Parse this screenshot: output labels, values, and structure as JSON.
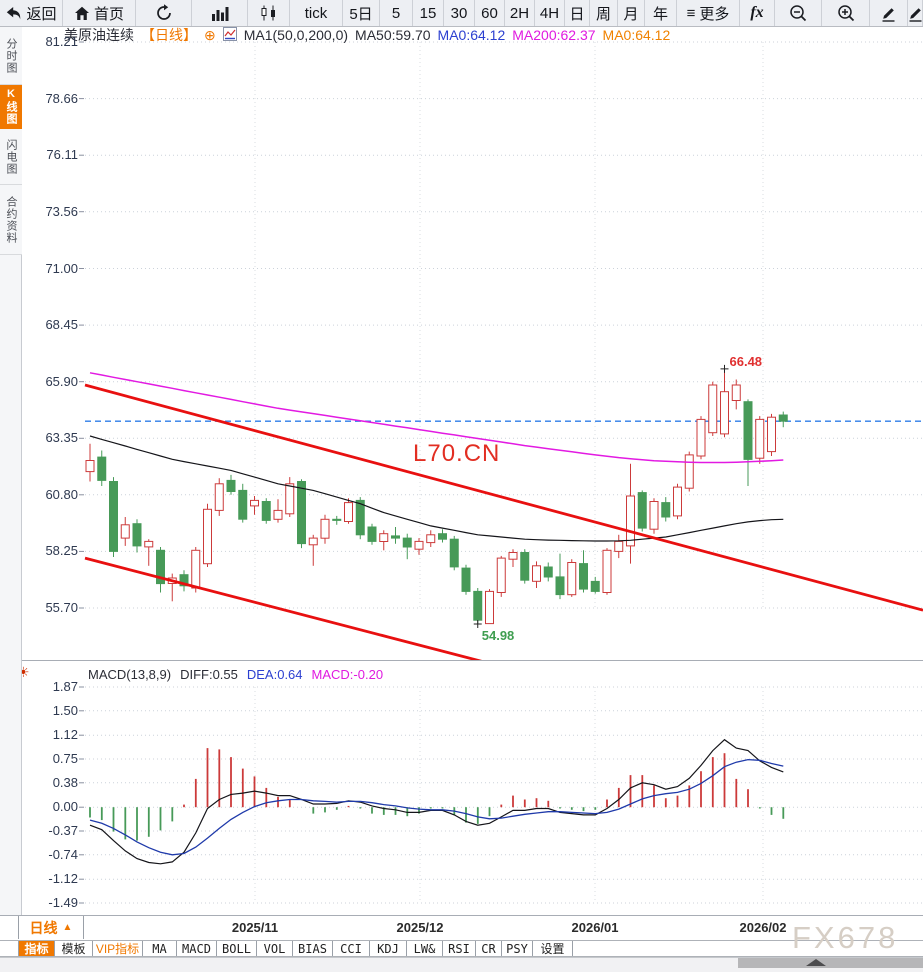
{
  "toolbar": {
    "items": [
      {
        "name": "back-button",
        "icon": "back-arrow-icon",
        "label": "返回"
      },
      {
        "name": "home-button",
        "icon": "home-icon",
        "label": "首页"
      },
      {
        "name": "refresh-button",
        "icon": "refresh-icon"
      },
      {
        "name": "chart-style-bar-button",
        "icon": "bar-chart-icon"
      },
      {
        "name": "chart-style-candle-button",
        "icon": "candlestick-icon"
      },
      {
        "name": "interval-tick-button",
        "label": "tick"
      },
      {
        "name": "interval-5day-button",
        "label": "5日"
      },
      {
        "name": "interval-5min-button",
        "label": "5"
      },
      {
        "name": "interval-15min-button",
        "label": "15"
      },
      {
        "name": "interval-30min-button",
        "label": "30"
      },
      {
        "name": "interval-60min-button",
        "label": "60"
      },
      {
        "name": "interval-2h-button",
        "label": "2H"
      },
      {
        "name": "interval-4h-button",
        "label": "4H"
      },
      {
        "name": "interval-day-button",
        "label": "日"
      },
      {
        "name": "interval-week-button",
        "label": "周"
      },
      {
        "name": "interval-month-button",
        "label": "月"
      },
      {
        "name": "interval-year-button",
        "label": "年"
      },
      {
        "name": "more-button",
        "icon": "menu-icon",
        "label": "更多"
      },
      {
        "name": "fx-indicator-button",
        "label": "fx",
        "fx": true
      },
      {
        "name": "zoom-out-button",
        "icon": "zoom-out-icon"
      },
      {
        "name": "zoom-in-button",
        "icon": "zoom-in-icon"
      },
      {
        "name": "draw-button",
        "icon": "pencil-icon"
      },
      {
        "name": "draw-partial-button",
        "icon": "pencil-icon"
      }
    ]
  },
  "sidebar": {
    "items": [
      {
        "label": "分时图",
        "active": false,
        "name": "sidebar-item-time-chart"
      },
      {
        "label": "K线图",
        "active": true,
        "name": "sidebar-item-kline-chart"
      },
      {
        "label": "闪电图",
        "active": false,
        "name": "sidebar-item-lightning-chart"
      },
      {
        "label": "合约资料",
        "active": false,
        "name": "sidebar-item-contract-info"
      }
    ]
  },
  "header": {
    "symbol": "美原油连续",
    "period_tag": "【日线】",
    "plus_icon": "⊕",
    "ma_settings": "MA1(50,0,200,0)",
    "ma50": "MA50:59.70",
    "ma0_blue": "MA0:64.12",
    "ma200": "MA200:62.37",
    "ma0_orange": "MA0:64.12"
  },
  "macd_header": {
    "title": "MACD(13,8,9)",
    "diff": "DIFF:0.55",
    "dea": "DEA:0.64",
    "macd": "MACD:-0.20",
    "settings_icon": "☀"
  },
  "bottom": {
    "period_label": "日线",
    "period_arrow": "▲"
  },
  "indicator_tabs": {
    "items": [
      {
        "label": "指标",
        "active": true,
        "name": "tab-indicator"
      },
      {
        "label": "模板",
        "name": "tab-template"
      },
      {
        "label": "VIP指标",
        "vip": true,
        "name": "tab-vip-indicator"
      },
      {
        "label": "MA",
        "latin": true,
        "name": "tab-ma"
      },
      {
        "label": "MACD",
        "latin": true,
        "name": "tab-macd"
      },
      {
        "label": "BOLL",
        "latin": true,
        "name": "tab-boll"
      },
      {
        "label": "VOL",
        "latin": true,
        "name": "tab-vol"
      },
      {
        "label": "BIAS",
        "latin": true,
        "name": "tab-bias"
      },
      {
        "label": "CCI",
        "latin": true,
        "name": "tab-cci"
      },
      {
        "label": "KDJ",
        "latin": true,
        "name": "tab-kdj"
      },
      {
        "label": "LW&",
        "latin": true,
        "name": "tab-lwr"
      },
      {
        "label": "RSI",
        "latin": true,
        "name": "tab-rsi"
      },
      {
        "label": "CR",
        "latin": true,
        "name": "tab-cr"
      },
      {
        "label": "PSY",
        "latin": true,
        "name": "tab-psy"
      },
      {
        "label": "设置",
        "name": "tab-settings"
      }
    ]
  },
  "watermarks": {
    "chart": "L70.CN",
    "brand": "FX678"
  },
  "colors": {
    "accent": "#f07800",
    "up": "#cc3a3a",
    "down": "#479a58",
    "ma50": "#15151a",
    "ma200": "#e21ae2",
    "current_line": "#2d7ce8",
    "trend": "#e81010",
    "diff": "#15151a",
    "dea": "#1f3aaa",
    "grid": "#ccd2da",
    "grid_v": "#d8dce2",
    "tick": "#8a90a0"
  },
  "chart_data": {
    "type": "candlestick",
    "title": "美原油连续 日线 (WTI crude continuous, daily)",
    "indicator": "MACD(13,8,9)",
    "y_ticks": [
      81.21,
      78.66,
      76.11,
      73.56,
      71.0,
      68.45,
      65.9,
      63.35,
      60.8,
      58.25,
      55.7
    ],
    "x_labels": [
      {
        "label": "2025/11",
        "x": 255
      },
      {
        "label": "2025/12",
        "x": 420
      },
      {
        "label": "2026/01",
        "x": 595
      },
      {
        "label": "2026/02",
        "x": 763
      }
    ],
    "current_price": 64.12,
    "annotations": {
      "high": {
        "index": 54,
        "price": 66.48,
        "label": "66.48"
      },
      "low": {
        "index": 33,
        "price": 54.98,
        "label": "54.98"
      }
    },
    "trendlines": [
      {
        "x1": 85,
        "price1": 65.75,
        "x2": 923,
        "price2": 55.6
      },
      {
        "x1": 85,
        "price1": 57.95,
        "x2": 490,
        "price2": 53.2
      }
    ],
    "candles": [
      [
        61.85,
        63.1,
        61.4,
        62.35
      ],
      [
        62.5,
        62.8,
        61.2,
        61.45
      ],
      [
        61.4,
        61.6,
        58.0,
        58.25
      ],
      [
        58.85,
        59.8,
        58.5,
        59.45
      ],
      [
        59.5,
        59.7,
        58.2,
        58.5
      ],
      [
        58.45,
        58.8,
        57.6,
        58.7
      ],
      [
        58.3,
        58.45,
        56.4,
        56.8
      ],
      [
        56.8,
        57.25,
        56.0,
        57.05
      ],
      [
        57.2,
        57.4,
        56.45,
        56.7
      ],
      [
        56.6,
        58.45,
        56.4,
        58.3
      ],
      [
        57.7,
        60.4,
        57.55,
        60.15
      ],
      [
        60.1,
        61.55,
        59.85,
        61.3
      ],
      [
        61.45,
        61.7,
        60.8,
        60.95
      ],
      [
        61.0,
        61.3,
        59.55,
        59.7
      ],
      [
        60.3,
        60.75,
        59.9,
        60.55
      ],
      [
        60.5,
        60.65,
        59.5,
        59.65
      ],
      [
        59.7,
        60.6,
        59.55,
        60.1
      ],
      [
        59.95,
        61.6,
        59.8,
        61.3
      ],
      [
        61.4,
        61.5,
        58.4,
        58.6
      ],
      [
        58.55,
        59.0,
        57.6,
        58.85
      ],
      [
        58.85,
        59.9,
        58.6,
        59.7
      ],
      [
        59.7,
        59.85,
        59.45,
        59.65
      ],
      [
        59.6,
        60.65,
        59.5,
        60.45
      ],
      [
        60.55,
        60.7,
        58.8,
        59.0
      ],
      [
        59.35,
        59.5,
        58.55,
        58.7
      ],
      [
        58.7,
        59.2,
        58.3,
        59.05
      ],
      [
        58.95,
        59.35,
        58.6,
        58.85
      ],
      [
        58.85,
        59.05,
        57.9,
        58.45
      ],
      [
        58.35,
        58.85,
        58.1,
        58.7
      ],
      [
        58.65,
        59.2,
        58.45,
        59.0
      ],
      [
        59.05,
        59.25,
        58.65,
        58.8
      ],
      [
        58.8,
        58.95,
        57.4,
        57.55
      ],
      [
        57.5,
        57.65,
        56.3,
        56.45
      ],
      [
        56.45,
        56.6,
        54.98,
        55.15
      ],
      [
        55.0,
        56.55,
        54.99,
        56.45
      ],
      [
        56.4,
        58.05,
        56.2,
        57.95
      ],
      [
        57.9,
        58.35,
        57.55,
        58.2
      ],
      [
        58.2,
        58.35,
        56.8,
        56.95
      ],
      [
        56.9,
        57.8,
        56.6,
        57.6
      ],
      [
        57.55,
        57.75,
        56.9,
        57.1
      ],
      [
        57.1,
        58.15,
        56.1,
        56.3
      ],
      [
        56.3,
        57.9,
        56.2,
        57.75
      ],
      [
        57.7,
        58.3,
        56.4,
        56.55
      ],
      [
        56.9,
        57.1,
        56.35,
        56.45
      ],
      [
        56.4,
        58.4,
        56.3,
        58.3
      ],
      [
        58.25,
        59.0,
        57.95,
        58.7
      ],
      [
        58.5,
        62.2,
        57.7,
        60.75
      ],
      [
        60.9,
        61.0,
        59.15,
        59.3
      ],
      [
        59.25,
        60.65,
        59.05,
        60.5
      ],
      [
        60.45,
        60.7,
        59.6,
        59.8
      ],
      [
        59.85,
        61.3,
        59.7,
        61.15
      ],
      [
        61.1,
        62.75,
        60.95,
        62.6
      ],
      [
        62.55,
        64.35,
        62.4,
        64.2
      ],
      [
        63.6,
        65.9,
        63.45,
        65.75
      ],
      [
        63.55,
        66.48,
        63.4,
        65.45
      ],
      [
        65.05,
        66.0,
        64.65,
        65.75
      ],
      [
        65.0,
        65.1,
        61.2,
        62.4
      ],
      [
        62.45,
        64.35,
        62.2,
        64.2
      ],
      [
        62.75,
        64.45,
        62.55,
        64.3
      ],
      [
        64.4,
        64.55,
        63.85,
        64.12
      ]
    ],
    "ma50": [
      63.45,
      63.3,
      63.15,
      63.0,
      62.85,
      62.7,
      62.55,
      62.4,
      62.3,
      62.2,
      62.1,
      62.0,
      61.9,
      61.75,
      61.6,
      61.45,
      61.3,
      61.2,
      61.1,
      61.0,
      60.85,
      60.7,
      60.55,
      60.4,
      60.2,
      60.0,
      59.85,
      59.7,
      59.55,
      59.4,
      59.3,
      59.2,
      59.1,
      59.0,
      58.95,
      58.9,
      58.85,
      58.8,
      58.78,
      58.76,
      58.75,
      58.74,
      58.73,
      58.72,
      58.72,
      58.73,
      58.75,
      58.8,
      58.85,
      58.9,
      59.0,
      59.1,
      59.2,
      59.3,
      59.4,
      59.5,
      59.58,
      59.64,
      59.68,
      59.7
    ],
    "ma200": [
      66.3,
      66.2,
      66.1,
      66.0,
      65.9,
      65.8,
      65.7,
      65.6,
      65.5,
      65.4,
      65.3,
      65.2,
      65.1,
      65.0,
      64.9,
      64.8,
      64.7,
      64.62,
      64.54,
      64.46,
      64.38,
      64.3,
      64.22,
      64.14,
      64.06,
      63.98,
      63.9,
      63.82,
      63.74,
      63.66,
      63.58,
      63.5,
      63.42,
      63.34,
      63.26,
      63.18,
      63.1,
      63.02,
      62.95,
      62.88,
      62.81,
      62.74,
      62.67,
      62.6,
      62.54,
      62.48,
      62.43,
      62.38,
      62.34,
      62.31,
      62.29,
      62.27,
      62.26,
      62.26,
      62.26,
      62.27,
      62.29,
      62.31,
      62.34,
      62.37
    ],
    "macd": {
      "y_ticks": [
        1.87,
        1.5,
        1.12,
        0.75,
        0.38,
        0.0,
        -0.37,
        -0.74,
        -1.12,
        -1.49
      ],
      "diff": [
        -0.28,
        -0.35,
        -0.52,
        -0.68,
        -0.8,
        -0.86,
        -0.88,
        -0.85,
        -0.7,
        -0.4,
        -0.02,
        0.12,
        0.2,
        0.22,
        0.25,
        0.22,
        0.18,
        0.18,
        0.12,
        0.05,
        0.05,
        0.06,
        0.1,
        0.08,
        0.02,
        -0.02,
        -0.04,
        -0.08,
        -0.08,
        -0.05,
        -0.05,
        -0.12,
        -0.22,
        -0.28,
        -0.25,
        -0.15,
        -0.05,
        -0.05,
        -0.02,
        -0.02,
        -0.08,
        -0.1,
        -0.12,
        -0.12,
        -0.02,
        0.12,
        0.3,
        0.38,
        0.35,
        0.28,
        0.32,
        0.45,
        0.65,
        0.88,
        1.05,
        0.92,
        0.88,
        0.72,
        0.62,
        0.55
      ],
      "dea": [
        -0.2,
        -0.25,
        -0.33,
        -0.43,
        -0.54,
        -0.63,
        -0.7,
        -0.74,
        -0.72,
        -0.62,
        -0.48,
        -0.33,
        -0.19,
        -0.08,
        0.01,
        0.07,
        0.1,
        0.12,
        0.12,
        0.1,
        0.09,
        0.08,
        0.09,
        0.09,
        0.07,
        0.04,
        0.02,
        -0.01,
        -0.03,
        -0.04,
        -0.04,
        -0.06,
        -0.1,
        -0.15,
        -0.18,
        -0.17,
        -0.14,
        -0.11,
        -0.09,
        -0.07,
        -0.07,
        -0.08,
        -0.09,
        -0.1,
        -0.08,
        -0.03,
        0.05,
        0.13,
        0.18,
        0.21,
        0.23,
        0.28,
        0.37,
        0.49,
        0.63,
        0.7,
        0.74,
        0.73,
        0.68,
        0.64
      ]
    }
  }
}
